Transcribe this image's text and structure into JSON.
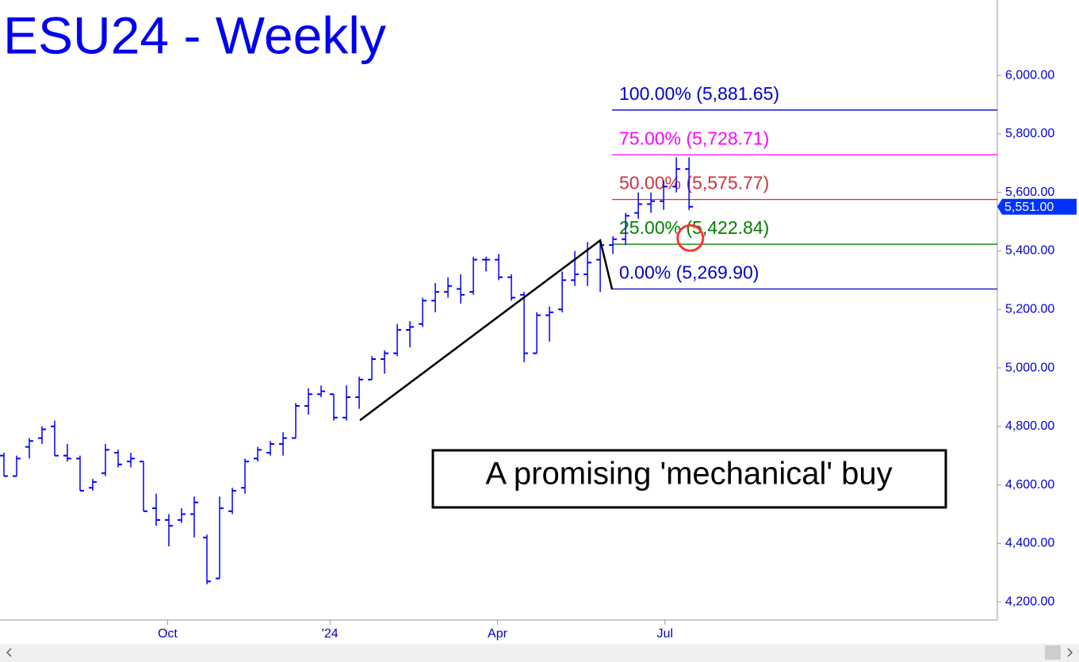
{
  "chart_data": {
    "type": "ohlc",
    "title": "ESU24 - Weekly",
    "color": "#0000ff",
    "xlim": [
      -0.31,
      78.3
    ],
    "xticks": [
      {
        "value": 12.9,
        "label": "Oct"
      },
      {
        "value": 25.7,
        "label": "'24"
      },
      {
        "value": 38.9,
        "label": "Apr"
      },
      {
        "value": 52.1,
        "label": "Jul"
      }
    ],
    "ylim": [
      4138,
      6258
    ],
    "yticks": [
      {
        "value": 4200,
        "label": "4,200.00"
      },
      {
        "value": 4400,
        "label": "4,400.00"
      },
      {
        "value": 4600,
        "label": "4,600.00"
      },
      {
        "value": 4800,
        "label": "4,800.00"
      },
      {
        "value": 5000,
        "label": "5,000.00"
      },
      {
        "value": 5200,
        "label": "5,200.00"
      },
      {
        "value": 5400,
        "label": "5,400.00"
      },
      {
        "value": 5600,
        "label": "5,600.00"
      },
      {
        "value": 5800,
        "label": "5,800.00"
      },
      {
        "value": 6000,
        "label": "6,000.00"
      }
    ],
    "open": [
      4700,
      4630,
      4730,
      4760,
      4800,
      4700,
      4690,
      4590,
      4640,
      4710,
      4680,
      4680,
      4520,
      4480,
      4480,
      4500,
      4420,
      4280,
      4510,
      4590,
      4690,
      4710,
      4740,
      4760,
      4870,
      4910,
      4910,
      4830,
      4900,
      4960,
      5030,
      5050,
      5130,
      5150,
      5230,
      5260,
      5270,
      5260,
      5370,
      5370,
      5310,
      5250,
      5050,
      5180,
      5200,
      5300,
      5320,
      5370,
      5420,
      5440,
      5530,
      5560,
      5570,
      5620,
      5680
    ],
    "high": [
      4710,
      4700,
      4760,
      4800,
      4820,
      4740,
      4700,
      4620,
      4740,
      4720,
      4710,
      4680,
      4570,
      4500,
      4520,
      4560,
      4430,
      4560,
      4590,
      4690,
      4730,
      4750,
      4780,
      4880,
      4930,
      4940,
      4910,
      4940,
      4970,
      5040,
      5060,
      5150,
      5160,
      5240,
      5290,
      5310,
      5320,
      5380,
      5380,
      5390,
      5320,
      5260,
      5190,
      5210,
      5330,
      5400,
      5430,
      5440,
      5450,
      5530,
      5600,
      5600,
      5640,
      5720,
      5720
    ],
    "low": [
      4630,
      4630,
      4690,
      4740,
      4700,
      4680,
      4580,
      4580,
      4630,
      4660,
      4660,
      4510,
      4460,
      4390,
      4470,
      4420,
      4260,
      4280,
      4500,
      4570,
      4680,
      4700,
      4700,
      4760,
      4840,
      4900,
      4820,
      4820,
      4860,
      4960,
      4980,
      5040,
      5070,
      5140,
      5190,
      5240,
      5220,
      5250,
      5330,
      5300,
      5230,
      5020,
      5050,
      5090,
      5190,
      5280,
      5280,
      5260,
      5390,
      5420,
      5510,
      5530,
      5540,
      5600,
      5540
    ],
    "close": [
      4630,
      4690,
      4750,
      4790,
      4700,
      4690,
      4580,
      4610,
      4720,
      4670,
      4690,
      4510,
      4480,
      4460,
      4500,
      4540,
      4270,
      4520,
      4580,
      4680,
      4720,
      4740,
      4760,
      4870,
      4910,
      4920,
      4830,
      4900,
      4960,
      5030,
      5050,
      5130,
      5140,
      5230,
      5260,
      5280,
      5250,
      5370,
      5370,
      5310,
      5240,
      5050,
      5180,
      5190,
      5300,
      5320,
      5360,
      5420,
      5440,
      5520,
      5560,
      5570,
      5620,
      5680,
      5551
    ],
    "last_price": {
      "value": 5551,
      "label": "5,551.00"
    },
    "fib_levels": [
      {
        "label": "100.00% (5,881.65)",
        "value": 5881.65,
        "color": "#0000cc"
      },
      {
        "label": "75.00% (5,728.71)",
        "value": 5728.71,
        "color": "#ff00ff"
      },
      {
        "label": "50.00% (5,575.77)",
        "value": 5575.77,
        "color": "#cc3344"
      },
      {
        "label": "25.00% (5,422.84)",
        "value": 5422.84,
        "color": "#008000"
      },
      {
        "label": "0.00% (5,269.90)",
        "value": 5269.9,
        "color": "#0000cc"
      }
    ],
    "trend_line": {
      "x": [
        28.06,
        47,
        47.94
      ],
      "y": [
        4821,
        5436,
        5268
      ]
    },
    "highlight": {
      "x": 54.1,
      "y": 5444
    },
    "annotation": "A promising 'mechanical' buy"
  }
}
